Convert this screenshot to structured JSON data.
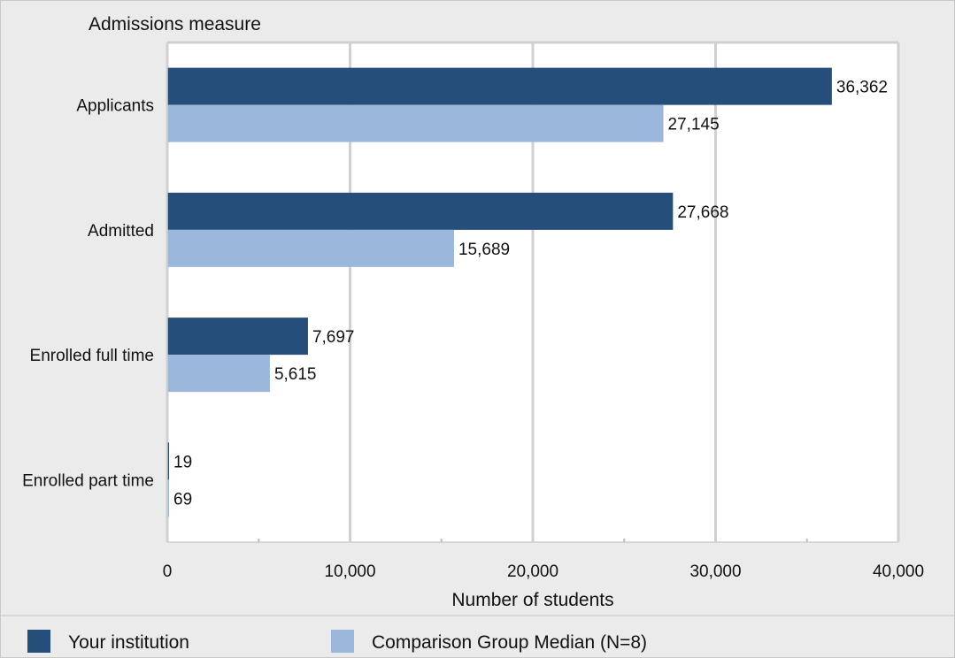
{
  "chart_data": {
    "type": "bar",
    "orientation": "horizontal",
    "title": "Admissions measure",
    "xlabel": "Number of students",
    "ylabel": "",
    "xlim": [
      0,
      40000
    ],
    "x_ticks": [
      0,
      10000,
      20000,
      30000,
      40000
    ],
    "x_tick_labels": [
      "0",
      "10,000",
      "20,000",
      "30,000",
      "40,000"
    ],
    "grid": true,
    "legend_position": "bottom",
    "categories": [
      "Applicants",
      "Admitted",
      "Enrolled full time",
      "Enrolled part time"
    ],
    "series": [
      {
        "name": "Your institution",
        "color": "#254e7b",
        "values": [
          36362,
          27668,
          7697,
          19
        ],
        "labels": [
          "36,362",
          "27,668",
          "7,697",
          "19"
        ]
      },
      {
        "name": "Comparison Group Median (N=8)",
        "color": "#9bb8dc",
        "values": [
          27145,
          15689,
          5615,
          69
        ],
        "labels": [
          "27,145",
          "15,689",
          "5,615",
          "69"
        ]
      }
    ]
  }
}
